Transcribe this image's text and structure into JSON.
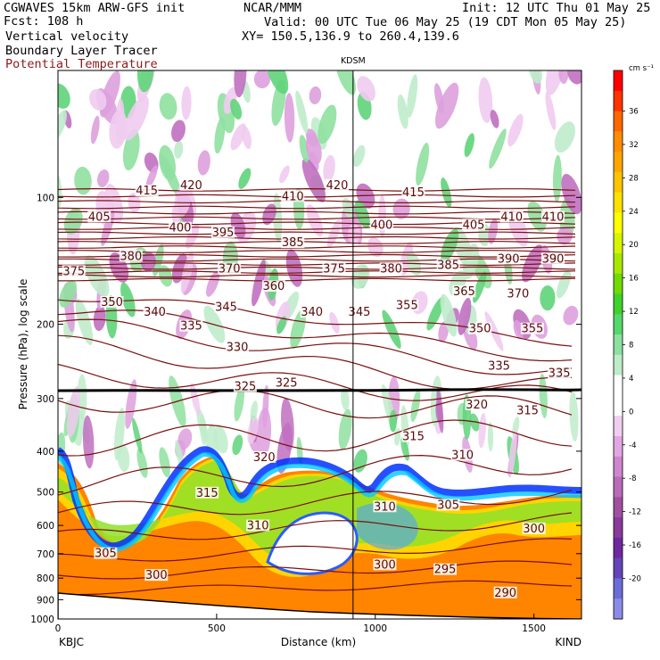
{
  "header": {
    "model": "CGWAVES 15km ARW-GFS init",
    "forecast": "Fcst: 108 h",
    "field1": "Vertical velocity",
    "field2": "Boundary Layer Tracer",
    "field3": "Potential Temperature",
    "org": "NCAR/MMM",
    "valid": "Valid: 00 UTC Tue 06 May 25 (19 CDT Mon 05 May 25)",
    "xy": "XY= 150.5,136.9 to 260.4,139.6",
    "init": "Init: 12 UTC Thu 01 May 25"
  },
  "chart_data": {
    "type": "heatmap",
    "title": "",
    "xlabel": "Distance (km)",
    "ylabel": "Pressure (hPa), log scale",
    "xlim": [
      0,
      1650
    ],
    "ylim": [
      1000,
      50
    ],
    "y_scale": "log",
    "x_ticks": [
      "0",
      "500",
      "1000",
      "1500"
    ],
    "y_ticks": [
      "100",
      "200",
      "300",
      "400",
      "500",
      "600",
      "700",
      "800",
      "900",
      "1000"
    ],
    "y_tick_values": [
      100,
      200,
      300,
      400,
      500,
      600,
      700,
      800,
      900,
      1000
    ],
    "left_endpoint": "KBJC",
    "right_endpoint": "KIND",
    "marker_station": "KDSM",
    "marker_distance_km": 930,
    "colorbar": {
      "units": "cm s⁻¹",
      "labels": [
        "36",
        "32",
        "28",
        "24",
        "20",
        "16",
        "12",
        "8",
        "4",
        "0",
        "-4",
        "-8",
        "-12",
        "-16",
        "-20"
      ],
      "colors": [
        "#ff0000",
        "#ff3300",
        "#ff6600",
        "#ff8c00",
        "#ffa500",
        "#ffc400",
        "#ffe100",
        "#ffff00",
        "#d6f500",
        "#a8e800",
        "#6fdb00",
        "#3fd22a",
        "#55d86a",
        "#8ce0a0",
        "#bcecc8",
        "#ffffff",
        "#ffffff",
        "#f1cdf1",
        "#e2a7e2",
        "#cf86cf",
        "#b96ab9",
        "#a050a0",
        "#8a3a9a",
        "#7028a0",
        "#6444b8",
        "#6c6cd8",
        "#8c8ce8"
      ]
    },
    "contour_labels": [
      {
        "text": "415",
        "km": 280,
        "p": 98
      },
      {
        "text": "420",
        "km": 420,
        "p": 95
      },
      {
        "text": "410",
        "km": 740,
        "p": 101
      },
      {
        "text": "420",
        "km": 880,
        "p": 95
      },
      {
        "text": "415",
        "km": 1120,
        "p": 99
      },
      {
        "text": "405",
        "km": 130,
        "p": 113
      },
      {
        "text": "400",
        "km": 385,
        "p": 120
      },
      {
        "text": "395",
        "km": 520,
        "p": 123
      },
      {
        "text": "385",
        "km": 740,
        "p": 130
      },
      {
        "text": "400",
        "km": 1020,
        "p": 118
      },
      {
        "text": "405",
        "km": 1310,
        "p": 118
      },
      {
        "text": "410",
        "km": 1430,
        "p": 113
      },
      {
        "text": "410",
        "km": 1560,
        "p": 113
      },
      {
        "text": "380",
        "km": 230,
        "p": 140
      },
      {
        "text": "370",
        "km": 540,
        "p": 150
      },
      {
        "text": "375",
        "km": 870,
        "p": 150
      },
      {
        "text": "380",
        "km": 1050,
        "p": 150
      },
      {
        "text": "385",
        "km": 1230,
        "p": 147
      },
      {
        "text": "390",
        "km": 1420,
        "p": 142
      },
      {
        "text": "390",
        "km": 1560,
        "p": 142
      },
      {
        "text": "375",
        "km": 50,
        "p": 152
      },
      {
        "text": "360",
        "km": 680,
        "p": 165
      },
      {
        "text": "350",
        "km": 170,
        "p": 180
      },
      {
        "text": "365",
        "km": 1280,
        "p": 170
      },
      {
        "text": "370",
        "km": 1450,
        "p": 172
      },
      {
        "text": "340",
        "km": 305,
        "p": 190
      },
      {
        "text": "345",
        "km": 530,
        "p": 185
      },
      {
        "text": "340",
        "km": 800,
        "p": 190
      },
      {
        "text": "345",
        "km": 950,
        "p": 190
      },
      {
        "text": "355",
        "km": 1100,
        "p": 183
      },
      {
        "text": "335",
        "km": 420,
        "p": 205
      },
      {
        "text": "350",
        "km": 1330,
        "p": 208
      },
      {
        "text": "355",
        "km": 1495,
        "p": 208
      },
      {
        "text": "330",
        "km": 565,
        "p": 230
      },
      {
        "text": "335",
        "km": 1390,
        "p": 255
      },
      {
        "text": "335",
        "km": 1580,
        "p": 265
      },
      {
        "text": "325",
        "km": 590,
        "p": 285
      },
      {
        "text": "325",
        "km": 720,
        "p": 280
      },
      {
        "text": "320",
        "km": 1320,
        "p": 315
      },
      {
        "text": "315",
        "km": 1480,
        "p": 325
      },
      {
        "text": "320",
        "km": 650,
        "p": 420
      },
      {
        "text": "315",
        "km": 1120,
        "p": 375
      },
      {
        "text": "310",
        "km": 1275,
        "p": 415
      },
      {
        "text": "315",
        "km": 470,
        "p": 510
      },
      {
        "text": "310",
        "km": 1030,
        "p": 550
      },
      {
        "text": "305",
        "km": 1230,
        "p": 545
      },
      {
        "text": "310",
        "km": 630,
        "p": 610
      },
      {
        "text": "300",
        "km": 1500,
        "p": 620
      },
      {
        "text": "305",
        "km": 150,
        "p": 710
      },
      {
        "text": "300",
        "km": 1030,
        "p": 755
      },
      {
        "text": "295",
        "km": 1220,
        "p": 775
      },
      {
        "text": "300",
        "km": 310,
        "p": 800
      },
      {
        "text": "290",
        "km": 1410,
        "p": 880
      }
    ]
  }
}
